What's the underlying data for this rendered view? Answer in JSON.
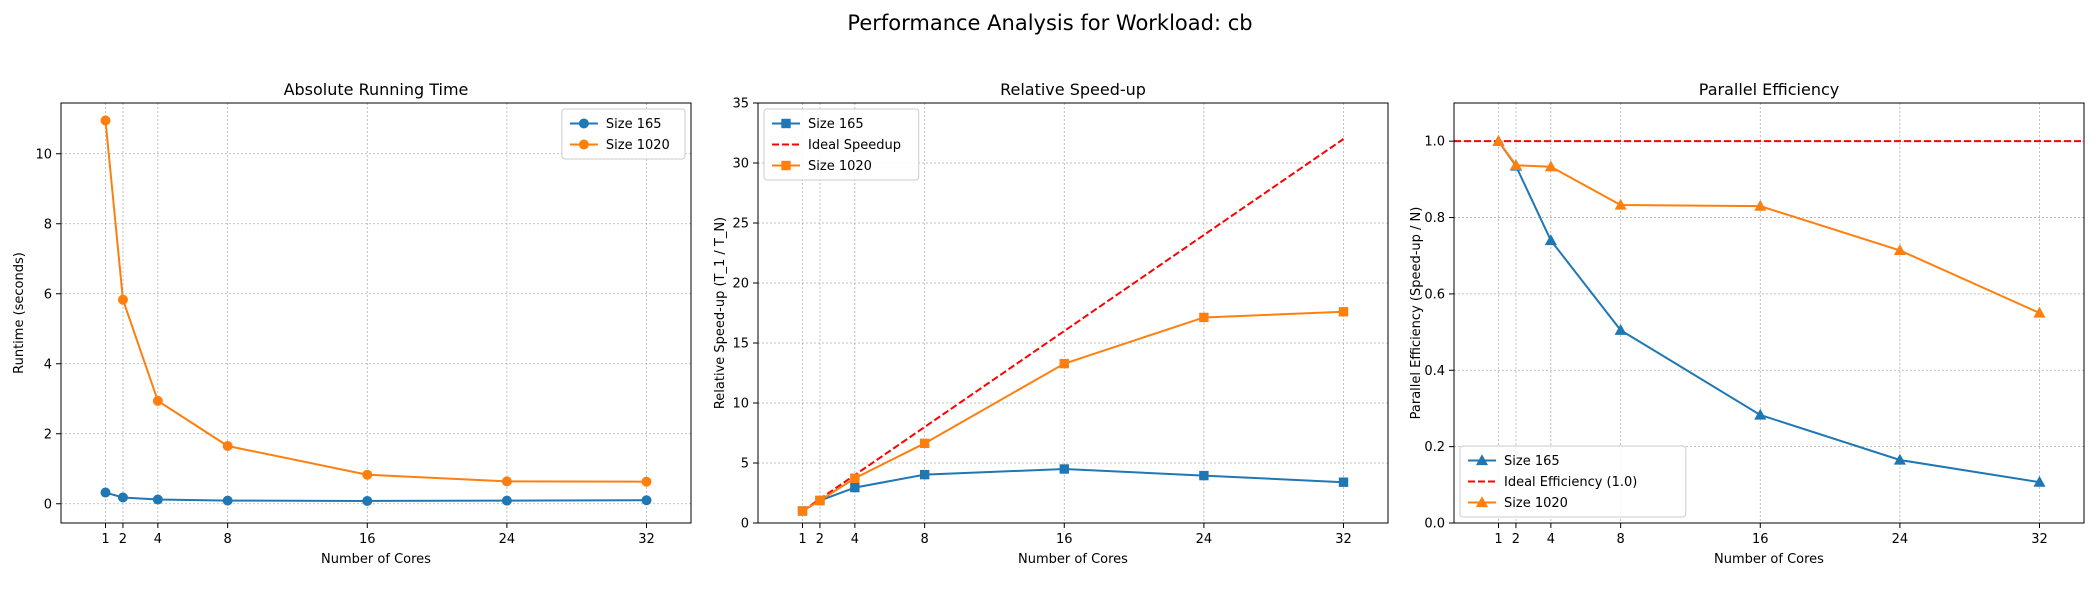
{
  "figure": {
    "suptitle": "Performance Analysis for Workload: cb"
  },
  "chart_data": [
    {
      "type": "line",
      "title": "Absolute Running Time",
      "xlabel": "Number of Cores",
      "ylabel": "Runtime (seconds)",
      "x": [
        1,
        2,
        4,
        8,
        16,
        24,
        32
      ],
      "xticks": [
        1,
        2,
        4,
        8,
        16,
        24,
        32
      ],
      "xlim": [
        -1.55,
        34.55
      ],
      "ylim": [
        -0.55,
        11.45
      ],
      "yticks": [
        0,
        2,
        4,
        6,
        8,
        10
      ],
      "grid": true,
      "legend_position": "top-right",
      "series": [
        {
          "name": "Size 165",
          "color": "#1f77b4",
          "marker": "circle",
          "dash": "solid",
          "values": [
            0.32,
            0.18,
            0.12,
            0.09,
            0.08,
            0.09,
            0.1
          ]
        },
        {
          "name": "Size 1020",
          "color": "#ff7f0e",
          "marker": "circle",
          "dash": "solid",
          "values": [
            10.95,
            5.83,
            2.94,
            1.65,
            0.83,
            0.64,
            0.63
          ]
        }
      ]
    },
    {
      "type": "line",
      "title": "Relative Speed-up",
      "xlabel": "Number of Cores",
      "ylabel": "Relative Speed-up (T_1 / T_N)",
      "x": [
        1,
        2,
        4,
        8,
        16,
        24,
        32
      ],
      "xticks": [
        1,
        2,
        4,
        8,
        16,
        24,
        32
      ],
      "xlim": [
        -1.55,
        34.55
      ],
      "ylim": [
        0,
        35
      ],
      "yticks": [
        0,
        5,
        10,
        15,
        20,
        25,
        30,
        35
      ],
      "grid": true,
      "legend_position": "top-left",
      "series": [
        {
          "name": "Size 165",
          "color": "#1f77b4",
          "marker": "square",
          "dash": "solid",
          "values": [
            1.0,
            1.87,
            2.95,
            4.03,
            4.5,
            3.95,
            3.4
          ]
        },
        {
          "name": "Ideal Speedup",
          "color": "#ff0000",
          "marker": "none",
          "dash": "dashed",
          "values": [
            1,
            2,
            4,
            8,
            16,
            24,
            32
          ]
        },
        {
          "name": "Size 1020",
          "color": "#ff7f0e",
          "marker": "square",
          "dash": "solid",
          "values": [
            1.0,
            1.88,
            3.73,
            6.64,
            13.28,
            17.13,
            17.6
          ]
        }
      ]
    },
    {
      "type": "line",
      "title": "Parallel Efficiency",
      "xlabel": "Number of Cores",
      "ylabel": "Parallel Efficiency (Speed-up / N)",
      "x": [
        1,
        2,
        4,
        8,
        16,
        24,
        32
      ],
      "xticks": [
        1,
        2,
        4,
        8,
        16,
        24,
        32
      ],
      "xlim": [
        -1.55,
        34.55
      ],
      "ylim": [
        0,
        1.1
      ],
      "yticks": [
        0.0,
        0.2,
        0.4,
        0.6,
        0.8,
        1.0
      ],
      "grid": true,
      "legend_position": "bottom-left",
      "series": [
        {
          "name": "Size 165",
          "color": "#1f77b4",
          "marker": "triangle",
          "dash": "solid",
          "values": [
            1.0,
            0.935,
            0.74,
            0.505,
            0.283,
            0.165,
            0.107
          ]
        },
        {
          "name": "Ideal Efficiency (1.0)",
          "color": "#ff0000",
          "marker": "none",
          "dash": "dashed",
          "hline": 1.0
        },
        {
          "name": "Size 1020",
          "color": "#ff7f0e",
          "marker": "triangle",
          "dash": "solid",
          "values": [
            1.0,
            0.937,
            0.933,
            0.833,
            0.83,
            0.714,
            0.55
          ]
        }
      ]
    }
  ]
}
